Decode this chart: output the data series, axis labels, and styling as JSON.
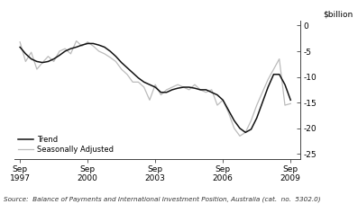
{
  "title": "",
  "ylabel": "$billion",
  "ylim": [
    -26,
    1
  ],
  "yticks": [
    0,
    -5,
    -10,
    -15,
    -20,
    -25
  ],
  "source": "Source:  Balance of Payments and International Investment Position, Australia (cat.  no.  5302.0)",
  "legend_entries": [
    "Trend",
    "Seasonally Adjusted"
  ],
  "trend_color": "#111111",
  "seasonal_color": "#bbbbbb",
  "background_color": "#ffffff",
  "trend_data": {
    "x": [
      1997.75,
      1998.0,
      1998.25,
      1998.5,
      1998.75,
      1999.0,
      1999.25,
      1999.5,
      1999.75,
      2000.0,
      2000.25,
      2000.5,
      2000.75,
      2001.0,
      2001.25,
      2001.5,
      2001.75,
      2002.0,
      2002.25,
      2002.5,
      2002.75,
      2003.0,
      2003.25,
      2003.5,
      2003.75,
      2004.0,
      2004.25,
      2004.5,
      2004.75,
      2005.0,
      2005.25,
      2005.5,
      2005.75,
      2006.0,
      2006.25,
      2006.5,
      2006.75,
      2007.0,
      2007.25,
      2007.5,
      2007.75,
      2008.0,
      2008.25,
      2008.5,
      2008.75,
      2009.0,
      2009.25,
      2009.5,
      2009.75
    ],
    "y": [
      -4.2,
      -5.5,
      -6.5,
      -7.0,
      -7.2,
      -7.0,
      -6.5,
      -5.8,
      -5.0,
      -4.5,
      -4.2,
      -3.8,
      -3.5,
      -3.5,
      -3.8,
      -4.2,
      -5.0,
      -6.0,
      -7.2,
      -8.2,
      -9.2,
      -10.2,
      -11.0,
      -11.5,
      -12.0,
      -13.0,
      -13.0,
      -12.5,
      -12.2,
      -12.0,
      -12.0,
      -12.2,
      -12.5,
      -12.5,
      -13.0,
      -13.5,
      -14.5,
      -16.5,
      -18.5,
      -20.0,
      -20.8,
      -20.2,
      -18.0,
      -15.0,
      -12.0,
      -9.5,
      -9.5,
      -11.5,
      -14.5
    ]
  },
  "seasonal_data": {
    "x": [
      1997.75,
      1998.0,
      1998.25,
      1998.5,
      1998.75,
      1999.0,
      1999.25,
      1999.5,
      1999.75,
      2000.0,
      2000.25,
      2000.5,
      2000.75,
      2001.0,
      2001.25,
      2001.5,
      2001.75,
      2002.0,
      2002.25,
      2002.5,
      2002.75,
      2003.0,
      2003.25,
      2003.5,
      2003.75,
      2004.0,
      2004.25,
      2004.5,
      2004.75,
      2005.0,
      2005.25,
      2005.5,
      2005.75,
      2006.0,
      2006.25,
      2006.5,
      2006.75,
      2007.0,
      2007.25,
      2007.5,
      2007.75,
      2008.0,
      2008.25,
      2008.5,
      2008.75,
      2009.0,
      2009.25,
      2009.5,
      2009.75
    ],
    "y": [
      -3.2,
      -7.0,
      -5.2,
      -8.5,
      -7.2,
      -6.0,
      -7.0,
      -5.0,
      -4.5,
      -5.5,
      -3.0,
      -4.0,
      -3.2,
      -4.0,
      -5.0,
      -5.5,
      -6.2,
      -7.0,
      -8.5,
      -9.5,
      -11.0,
      -11.0,
      -12.0,
      -14.5,
      -11.5,
      -13.5,
      -12.5,
      -12.0,
      -11.5,
      -12.0,
      -12.5,
      -11.5,
      -12.5,
      -13.0,
      -12.5,
      -15.5,
      -14.5,
      -17.0,
      -20.0,
      -21.5,
      -20.8,
      -18.5,
      -15.5,
      -13.0,
      -10.5,
      -8.5,
      -6.5,
      -15.5,
      -15.2
    ]
  },
  "xticks": [
    1997.75,
    2000.75,
    2003.75,
    2006.75,
    2009.75
  ],
  "xticklabels": [
    "Sep\n1997",
    "Sep\n2000",
    "Sep\n2003",
    "Sep\n2006",
    "Sep\n2009"
  ],
  "xlim": [
    1997.5,
    2010.2
  ]
}
